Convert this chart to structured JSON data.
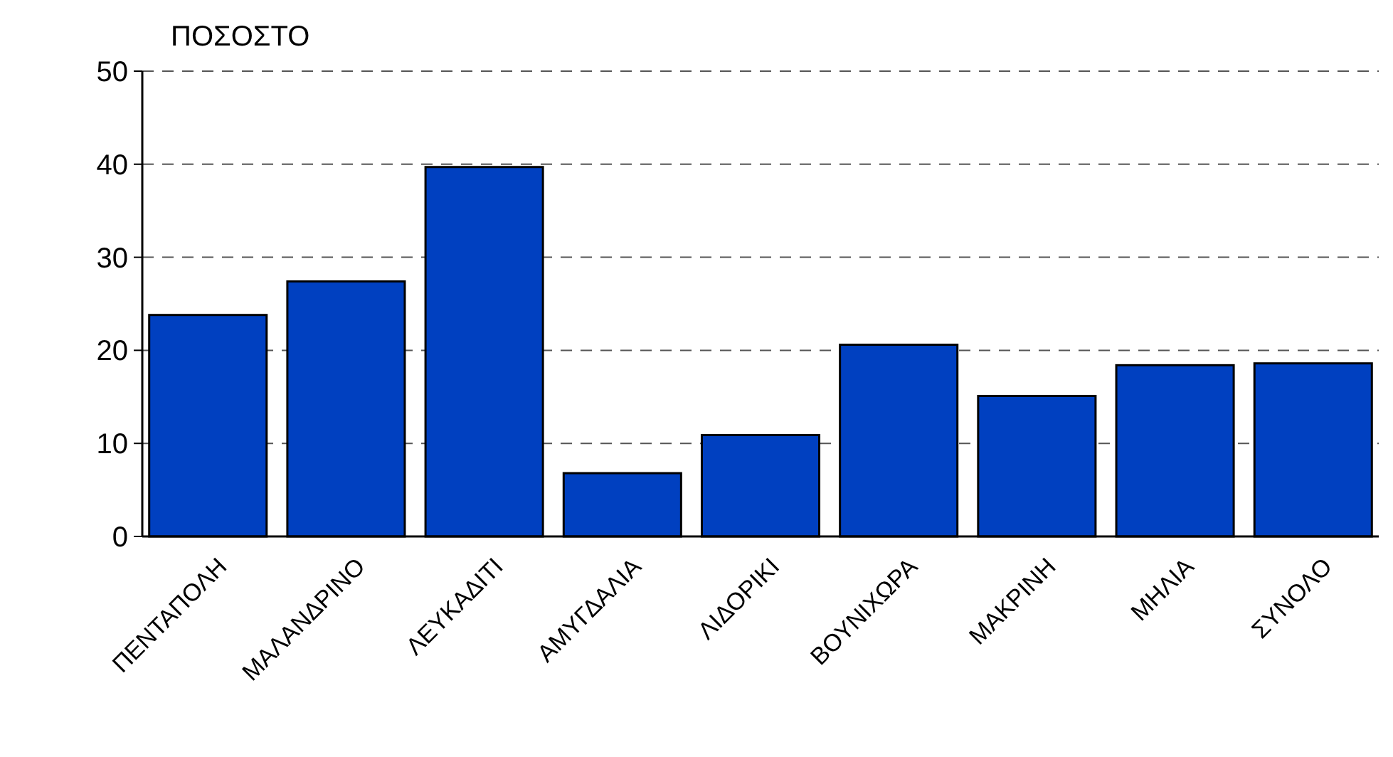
{
  "chart_data": {
    "type": "bar",
    "ylabel": "ΠΟΣΟΣΤΟ",
    "categories": [
      "ΠΕΝΤΑΠΟΛΗ",
      "ΜΑΛΑΝΔΡΙΝΟ",
      "ΛΕΥΚΑΔΙΤΙ",
      "ΑΜΥΓΔΑΛΙΑ",
      "ΛΙΔΟΡΙΚΙ",
      "ΒΟΥΝΙΧΩΡΑ",
      "ΜΑΚΡΙΝΗ",
      "ΜΗΛΙΑ",
      "ΣΥΝΟΛΟ"
    ],
    "values": [
      23.8,
      27.4,
      39.7,
      6.8,
      10.9,
      20.6,
      15.1,
      18.4,
      18.6
    ],
    "color": "#0040c0",
    "ylim": [
      0,
      50
    ],
    "yticks": [
      0,
      10,
      20,
      30,
      40,
      50
    ],
    "grid": "y",
    "line_style": "dashed"
  }
}
